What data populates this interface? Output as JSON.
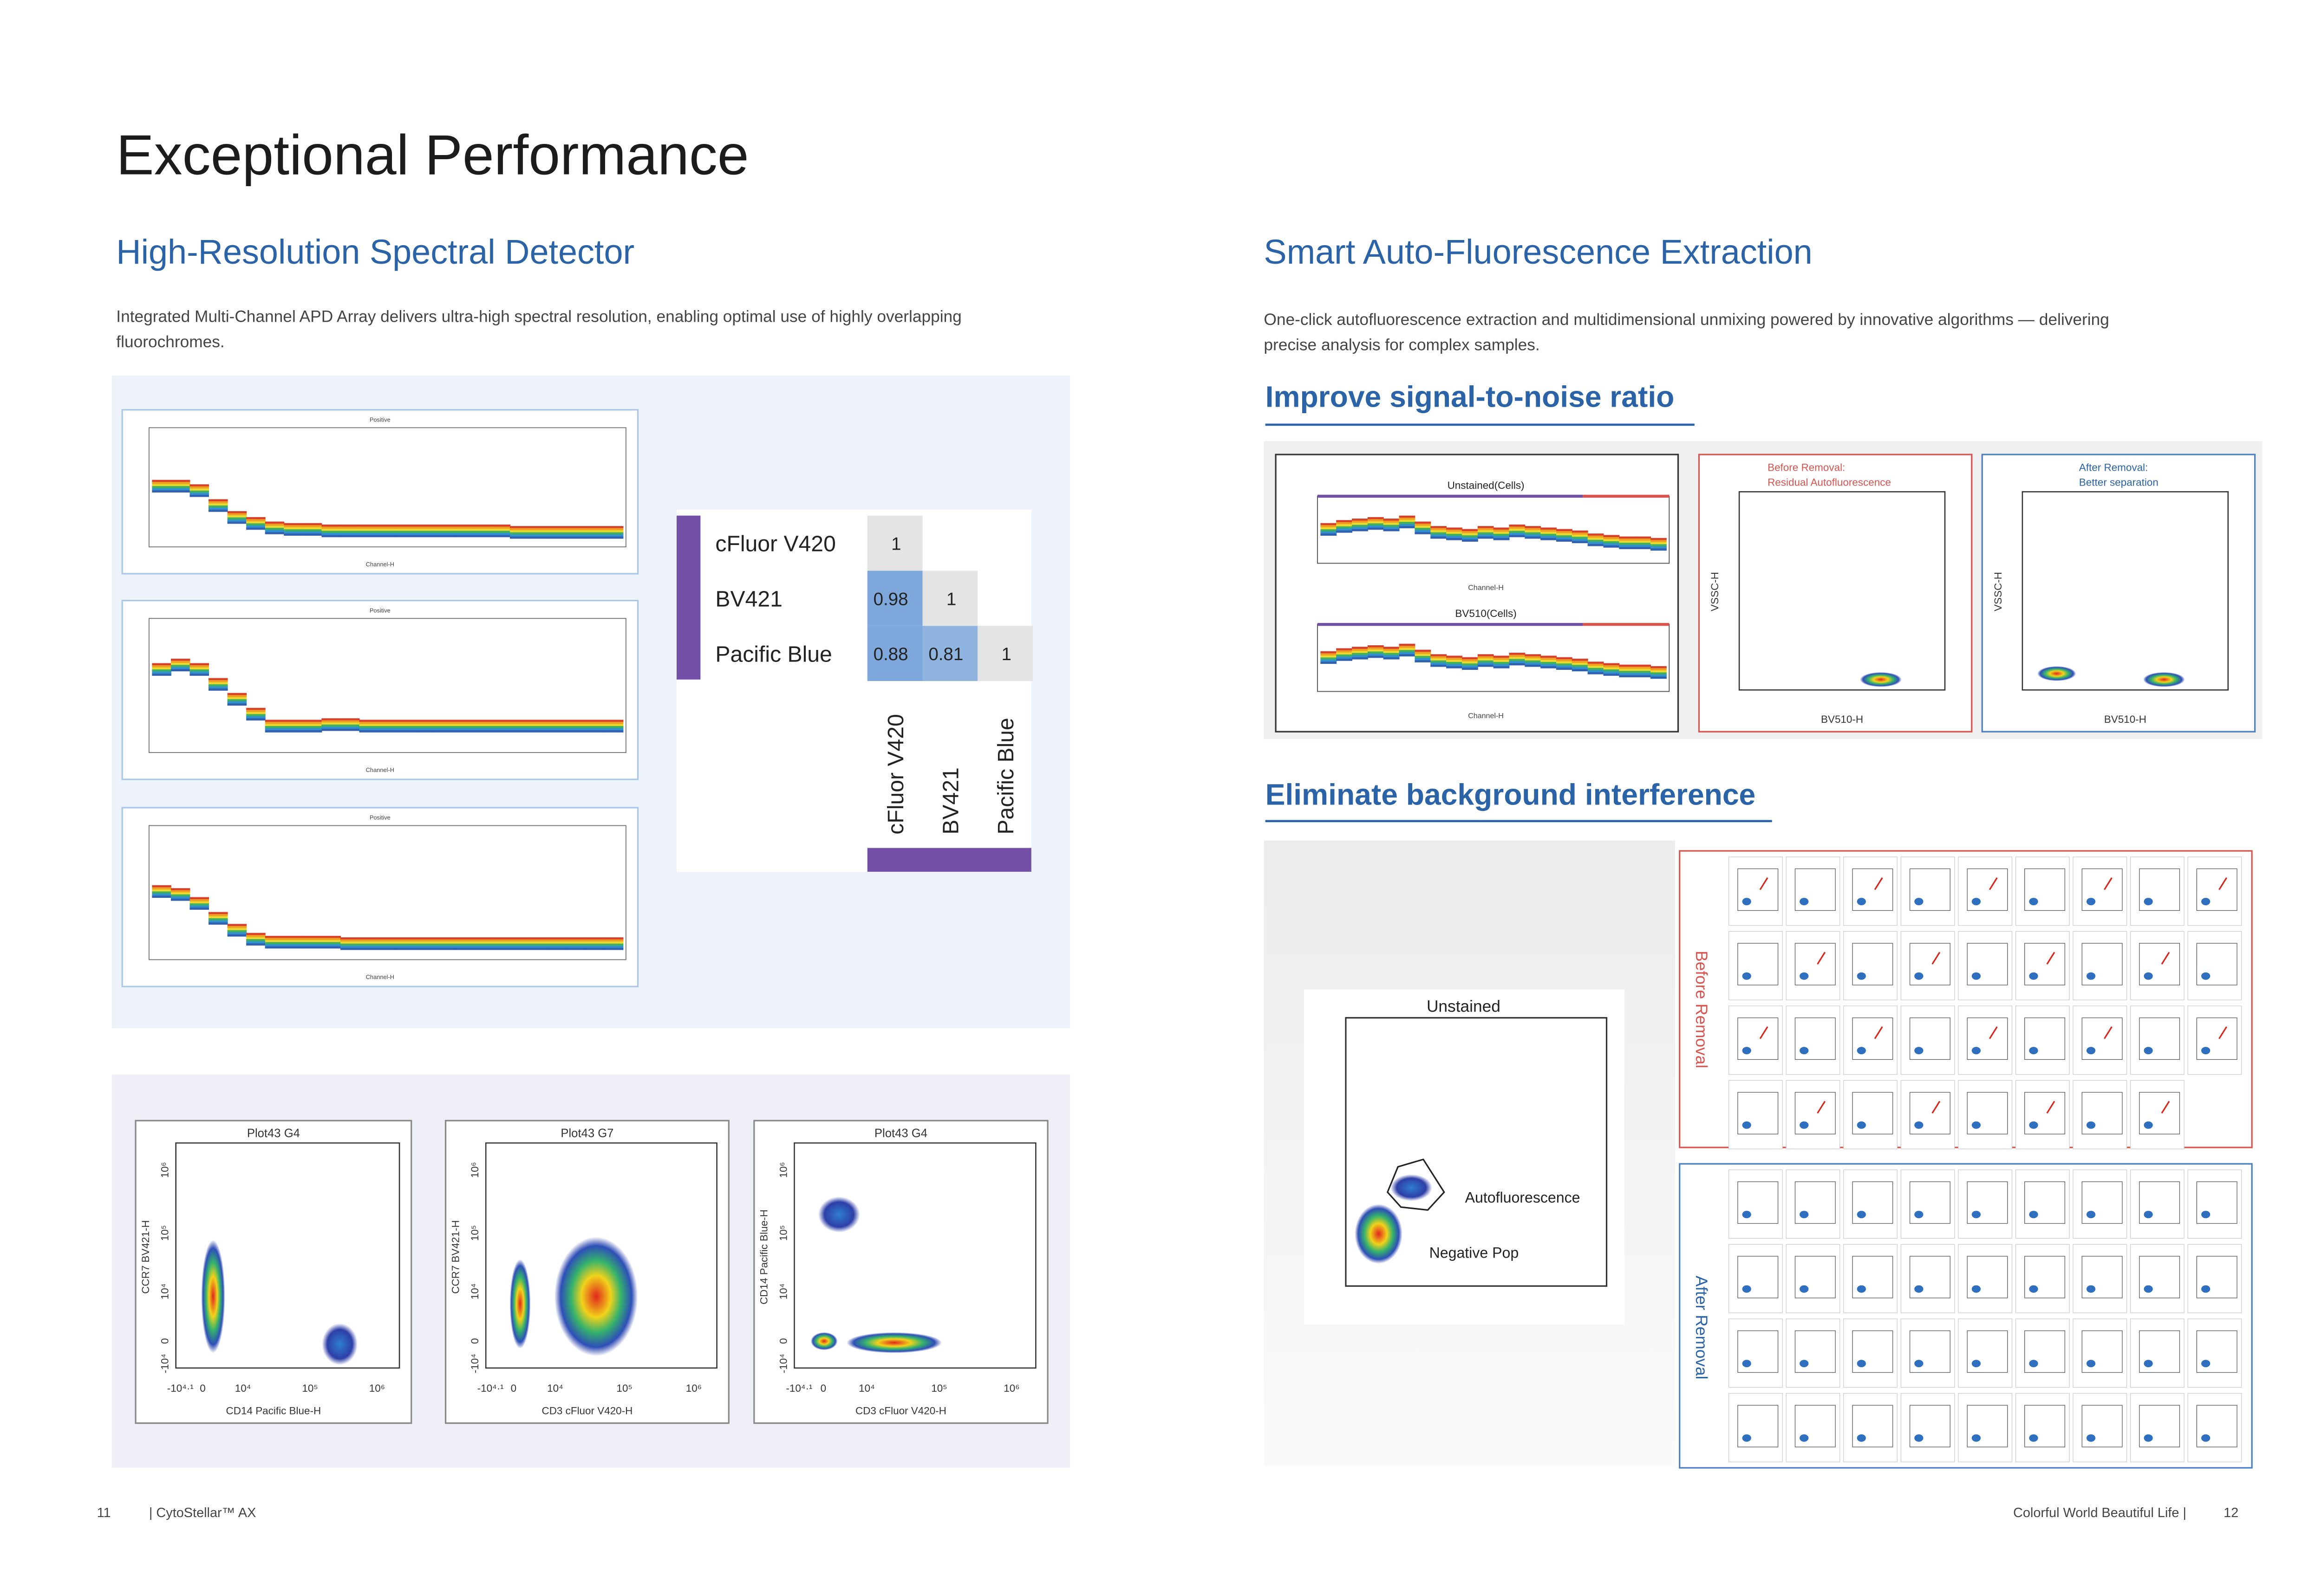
{
  "header": {
    "title": "Exceptional Performance"
  },
  "left": {
    "heading": "High-Resolution Spectral Detector",
    "text": [
      "Integrated Multi-Channel APD Array delivers ultra-high spectral resolution, enabling optimal use of highly overlapping",
      "fluorochromes."
    ],
    "spectra": [
      {
        "title": "Positive",
        "xlabel": "Channel-H"
      },
      {
        "title": "Positive",
        "xlabel": "Channel-H"
      },
      {
        "title": "Positive",
        "xlabel": "Channel-H"
      }
    ],
    "matrix": {
      "rows": [
        "cFluor V420",
        "BV421",
        "Pacific Blue"
      ],
      "columns": [
        "cFluor V420",
        "BV421",
        "Pacific Blue"
      ],
      "values": [
        [
          1
        ],
        [
          0.98,
          1
        ],
        [
          0.88,
          0.81,
          1
        ]
      ]
    },
    "plots": [
      {
        "title": "Plot43 G4",
        "xlabel": "CD14 Pacific Blue-H",
        "ylabel": "CCR7 BV421-H"
      },
      {
        "title": "Plot43 G7",
        "xlabel": "CD3 cFluor V420-H",
        "ylabel": "CCR7 BV421-H"
      },
      {
        "title": "Plot43 G4",
        "xlabel": "CD3 cFluor V420-H",
        "ylabel": "CD14 Pacific Blue-H"
      }
    ],
    "plot_xticks": [
      "-10⁴·¹",
      "0",
      "10⁴",
      "10⁵",
      "10⁶"
    ],
    "plot_yticks": [
      "-10⁴",
      "0",
      "10⁴",
      "10⁵",
      "10⁶"
    ]
  },
  "right": {
    "heading": "Smart Auto-Fluorescence Extraction",
    "text": [
      "One-click autofluorescence extraction and multidimensional unmixing powered by innovative algorithms — delivering",
      "precise analysis for complex samples."
    ],
    "snr": {
      "heading": "Improve signal-to-noise ratio",
      "spectra": [
        "Unstained(Cells)",
        "BV510(Cells)"
      ],
      "spectra_xlabel": "Channel-H",
      "before": [
        "Before Removal:",
        "Residual Autofluorescence"
      ],
      "after": [
        "After Removal:",
        "Better separation"
      ],
      "xlabel": "BV510-H",
      "ylabel": "VSSC-H"
    },
    "background": {
      "heading": "Eliminate background interference",
      "plot_title": "Unstained",
      "auto": "Autofluorescence",
      "neg": "Negative Pop",
      "before": "Before Removal",
      "after": "After Removal"
    }
  },
  "footer": {
    "left_page": "11",
    "left_text": "|  CytoStellar™ AX",
    "right_text": "Colorful World  Beautiful Life  |",
    "right_page": "12"
  }
}
